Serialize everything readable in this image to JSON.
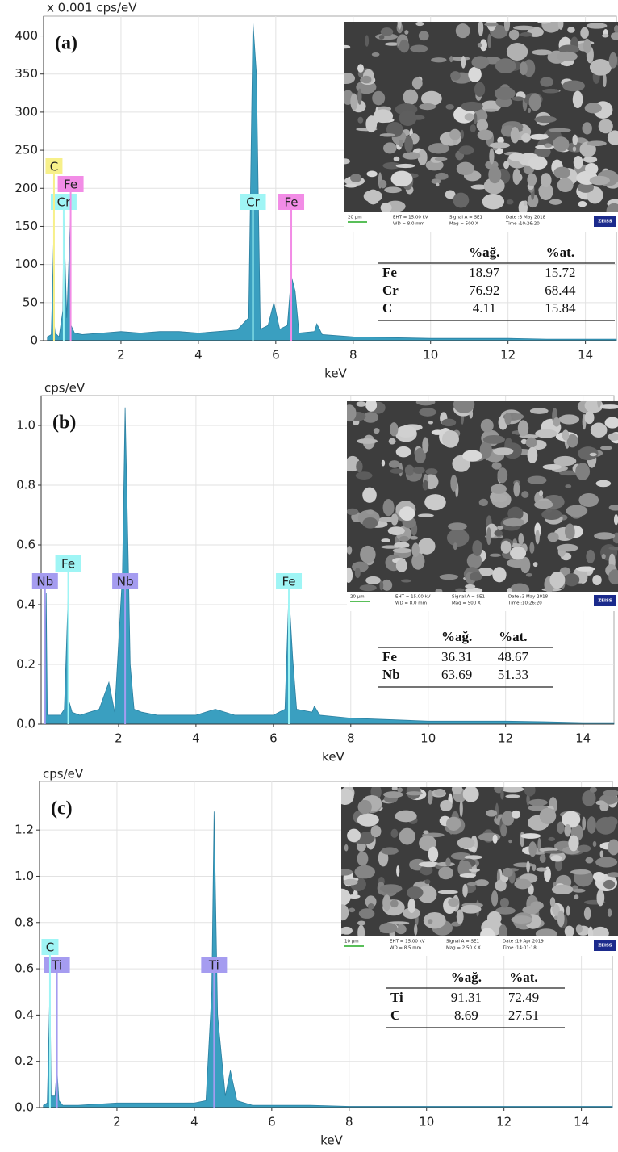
{
  "chart_data": [
    {
      "type": "area",
      "label": "(a)",
      "ylabel": "x 0.001 cps/eV",
      "xlabel": "keV",
      "xlim": [
        0,
        14.8
      ],
      "ylim": [
        0,
        426
      ],
      "xticks": [
        2,
        4,
        6,
        8,
        10,
        12,
        14
      ],
      "yticks": [
        0,
        50,
        100,
        150,
        200,
        250,
        300,
        350,
        400
      ],
      "grid": true,
      "color": "#3a9fc0",
      "x": [
        0.1,
        0.2,
        0.27,
        0.28,
        0.3,
        0.4,
        0.5,
        0.52,
        0.57,
        0.6,
        0.7,
        0.71,
        0.8,
        1,
        1.5,
        2,
        2.5,
        3,
        3.5,
        4,
        4.5,
        5,
        5.3,
        5.41,
        5.5,
        5.6,
        5.8,
        5.95,
        6.1,
        6.3,
        6.4,
        6.5,
        6.6,
        7,
        7.06,
        7.2,
        8,
        9,
        10,
        11,
        12,
        13,
        14,
        14.8
      ],
      "values": [
        5,
        8,
        150,
        20,
        10,
        5,
        40,
        170,
        80,
        30,
        170,
        20,
        10,
        8,
        10,
        12,
        10,
        12,
        12,
        10,
        12,
        14,
        30,
        418,
        350,
        15,
        20,
        50,
        15,
        20,
        85,
        65,
        10,
        12,
        22,
        8,
        5,
        4,
        3,
        3,
        3,
        2,
        2,
        2
      ],
      "annotations": [
        {
          "text": "Cr",
          "x": 0.52,
          "color": "#9ff5f5"
        },
        {
          "text": "Fe",
          "x": 0.7,
          "color": "#f28ce6"
        },
        {
          "text": "C",
          "x": 0.27,
          "color": "#f7f08a"
        },
        {
          "text": "Cr",
          "x": 5.41,
          "color": "#9ff5f5"
        },
        {
          "text": "Fe",
          "x": 6.4,
          "color": "#f28ce6"
        }
      ],
      "inset": {
        "scale_bar": "20 µm",
        "info": [
          "EHT = 15.00 kV",
          "WD = 8.0 mm",
          "Signal A = SE1",
          "Mag = 500 X",
          "Date :3 May 2018",
          "Time :10:26:20"
        ],
        "logo": "ZEISS"
      },
      "table": {
        "columns": [
          "%ağ.",
          "%at."
        ],
        "rows": [
          [
            "Fe",
            18.97,
            15.72
          ],
          [
            "Cr",
            76.92,
            68.44
          ],
          [
            "C",
            4.11,
            15.84
          ]
        ]
      }
    },
    {
      "type": "area",
      "label": "(b)",
      "ylabel": "cps/eV",
      "xlabel": "keV",
      "xlim": [
        0,
        14.8
      ],
      "ylim": [
        0,
        1.1
      ],
      "xticks": [
        2,
        4,
        6,
        8,
        10,
        12,
        14
      ],
      "yticks": [
        {
          "value": 0,
          "label": "0.0"
        },
        0.2,
        0.4,
        0.6,
        0.8,
        {
          "value": 1,
          "label": "1.0"
        }
      ],
      "grid": true,
      "color": "#3a9fc0",
      "x": [
        0.1,
        0.13,
        0.16,
        0.3,
        0.5,
        0.6,
        0.7,
        0.71,
        0.8,
        1,
        1.5,
        1.75,
        1.9,
        2.1,
        2.17,
        2.25,
        2.3,
        2.4,
        2.6,
        3,
        3.5,
        4,
        4.5,
        5,
        5.5,
        6,
        6.3,
        6.4,
        6.5,
        6.6,
        7,
        7.06,
        7.2,
        8,
        9,
        10,
        11,
        12,
        13,
        14,
        14.8
      ],
      "values": [
        0.03,
        0.44,
        0.03,
        0.03,
        0.03,
        0.05,
        0.44,
        0.08,
        0.04,
        0.03,
        0.05,
        0.14,
        0.04,
        0.5,
        1.06,
        0.55,
        0.2,
        0.05,
        0.04,
        0.03,
        0.03,
        0.03,
        0.05,
        0.03,
        0.03,
        0.03,
        0.05,
        0.44,
        0.22,
        0.05,
        0.04,
        0.06,
        0.03,
        0.02,
        0.015,
        0.01,
        0.01,
        0.01,
        0.008,
        0.005,
        0.005
      ],
      "annotations": [
        {
          "text": "Nb",
          "x": 0.1,
          "color": "#a59cf0"
        },
        {
          "text": "Fe",
          "x": 0.7,
          "color": "#9ff5f5"
        },
        {
          "text": "Nb",
          "x": 2.17,
          "color": "#a59cf0"
        },
        {
          "text": "Fe",
          "x": 6.4,
          "color": "#9ff5f5"
        }
      ],
      "inset": {
        "scale_bar": "20 µm",
        "info": [
          "EHT = 15.00 kV",
          "WD = 8.0 mm",
          "Signal A = SE1",
          "Mag = 500 X",
          "Date :3 May 2018",
          "Time :10:26:20"
        ],
        "logo": "ZEISS"
      },
      "table": {
        "columns": [
          "%ağ.",
          "%at."
        ],
        "rows": [
          [
            "Fe",
            36.31,
            48.67
          ],
          [
            "Nb",
            63.69,
            51.33
          ]
        ]
      }
    },
    {
      "type": "area",
      "label": "(c)",
      "ylabel": "cps/eV",
      "xlabel": "keV",
      "xlim": [
        0,
        14.8
      ],
      "ylim": [
        0,
        1.41
      ],
      "xticks": [
        2,
        4,
        6,
        8,
        10,
        12,
        14
      ],
      "yticks": [
        {
          "value": 0,
          "label": "0.0"
        },
        0.2,
        0.4,
        0.6,
        0.8,
        {
          "value": 1,
          "label": "1.0"
        },
        1.2
      ],
      "grid": true,
      "color": "#3a9fc0",
      "x": [
        0.1,
        0.2,
        0.27,
        0.3,
        0.4,
        0.45,
        0.5,
        0.6,
        1,
        2,
        3,
        4,
        4.3,
        4.45,
        4.51,
        4.6,
        4.8,
        4.93,
        5.1,
        5.5,
        6,
        7,
        8,
        9,
        10,
        11,
        12,
        13,
        14,
        14.8
      ],
      "values": [
        0.01,
        0.02,
        0.52,
        0.05,
        0.05,
        0.17,
        0.03,
        0.01,
        0.01,
        0.02,
        0.02,
        0.02,
        0.03,
        0.5,
        1.28,
        0.4,
        0.05,
        0.16,
        0.03,
        0.01,
        0.01,
        0.01,
        0.005,
        0.005,
        0.005,
        0.005,
        0.005,
        0.005,
        0.005,
        0.005
      ],
      "annotations": [
        {
          "text": "Ti",
          "x": 0.45,
          "color": "#a59cf0"
        },
        {
          "text": "C",
          "x": 0.27,
          "color": "#9ff5f5"
        },
        {
          "text": "Ti",
          "x": 4.51,
          "color": "#a59cf0"
        }
      ],
      "inset": {
        "scale_bar": "10 µm",
        "info": [
          "EHT = 15.00 kV",
          "WD = 8.5 mm",
          "Signal A = SE1",
          "Mag = 2.50 K X",
          "Date :19 Apr 2019",
          "Time :14:01:18"
        ],
        "logo": "ZEISS"
      },
      "table": {
        "columns": [
          "%ağ.",
          "%at."
        ],
        "rows": [
          [
            "Ti",
            91.31,
            72.49
          ],
          [
            "C",
            8.69,
            27.51
          ]
        ]
      }
    }
  ]
}
